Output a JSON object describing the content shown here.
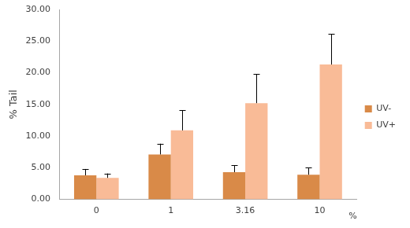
{
  "chart_data": {
    "type": "bar",
    "categories": [
      "0",
      "1",
      "3.16",
      "10"
    ],
    "xlabel": "%",
    "ylabel": "% Tail",
    "series": [
      {
        "name": "UV-",
        "color": "#d98a48",
        "values": [
          3.8,
          7.1,
          4.3,
          3.9
        ],
        "errors": [
          1.0,
          1.7,
          1.1,
          1.1
        ]
      },
      {
        "name": "UV+",
        "color": "#f9bb97",
        "values": [
          3.4,
          10.9,
          15.2,
          21.3
        ],
        "errors": [
          0.7,
          3.2,
          4.6,
          4.8
        ]
      }
    ],
    "ylim": [
      0,
      30
    ],
    "yticks": [
      {
        "value": 0,
        "label": "0.00"
      },
      {
        "value": 5,
        "label": "5.00"
      },
      {
        "value": 10,
        "label": "10.00"
      },
      {
        "value": 15,
        "label": "15.00"
      },
      {
        "value": 20,
        "label": "20.00"
      },
      {
        "value": 25,
        "label": "25.00"
      },
      {
        "value": 30,
        "label": "30.00"
      }
    ],
    "grid": false,
    "legend": "right"
  }
}
